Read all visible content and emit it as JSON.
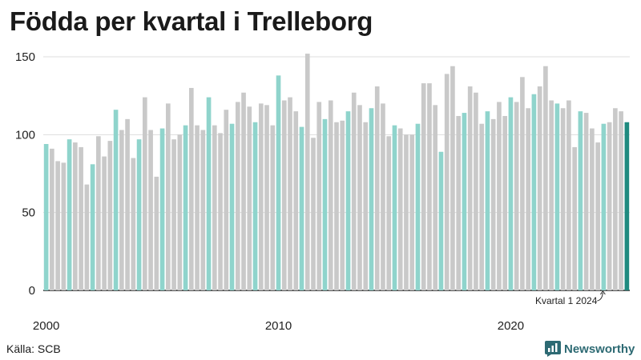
{
  "title": "Födda per kvartal i Trelleborg",
  "source": "Källa: SCB",
  "brand": {
    "name": "Newsworthy",
    "icon": "bar-chart-logo-icon",
    "color": "#2d6a73"
  },
  "colors": {
    "q1": "#8fd4cc",
    "other": "#c9c9c9",
    "latest": "#1f8a7f",
    "grid": "#dddddd"
  },
  "chart_data": {
    "type": "bar",
    "title": "Födda per kvartal i Trelleborg",
    "xlabel": "",
    "ylabel": "",
    "ylim": [
      0,
      150
    ],
    "yticks": [
      0,
      50,
      100,
      150
    ],
    "xticks": [
      "2000",
      "2010",
      "2020"
    ],
    "first_year": 2000,
    "grid": true,
    "annotation": "Kvartal 1 2024",
    "values": [
      94,
      91,
      83,
      82,
      97,
      95,
      92,
      68,
      81,
      99,
      86,
      96,
      116,
      103,
      110,
      85,
      97,
      124,
      103,
      73,
      104,
      120,
      97,
      100,
      106,
      130,
      106,
      103,
      124,
      106,
      101,
      116,
      107,
      121,
      127,
      118,
      108,
      120,
      119,
      106,
      138,
      122,
      124,
      115,
      105,
      152,
      98,
      121,
      110,
      122,
      108,
      109,
      115,
      127,
      119,
      108,
      117,
      131,
      120,
      99,
      106,
      104,
      100,
      100,
      107,
      133,
      133,
      119,
      89,
      139,
      144,
      112,
      114,
      131,
      127,
      107,
      115,
      110,
      121,
      112,
      124,
      121,
      137,
      117,
      126,
      131,
      144,
      122,
      120,
      117,
      122,
      92,
      115,
      114,
      104,
      95,
      107,
      108,
      117,
      115,
      108
    ]
  }
}
